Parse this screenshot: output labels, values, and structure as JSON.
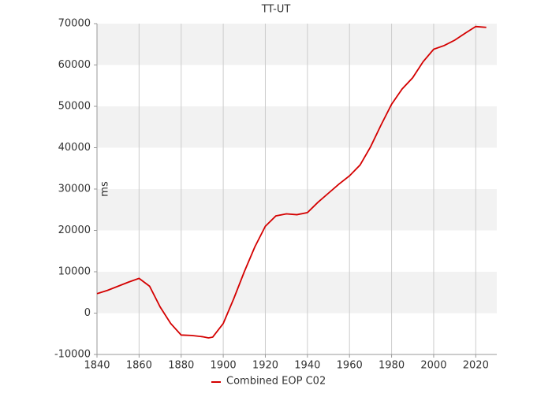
{
  "chart_data": {
    "type": "line",
    "title": "TT-UT",
    "y_label": "ms",
    "x": [
      1840,
      1845,
      1850,
      1855,
      1860,
      1865,
      1870,
      1875,
      1880,
      1885,
      1890,
      1893,
      1895,
      1900,
      1905,
      1910,
      1915,
      1920,
      1925,
      1930,
      1935,
      1940,
      1945,
      1950,
      1955,
      1960,
      1965,
      1970,
      1975,
      1980,
      1985,
      1990,
      1995,
      2000,
      2005,
      2010,
      2015,
      2020,
      2025
    ],
    "series": [
      {
        "name": "Combined EOP C02",
        "color": "#d40000",
        "values": [
          4700,
          5500,
          6500,
          7500,
          8400,
          6500,
          1500,
          -2500,
          -5300,
          -5400,
          -5700,
          -6000,
          -5800,
          -2500,
          3500,
          10000,
          16000,
          21000,
          23500,
          24000,
          23800,
          24300,
          26800,
          29000,
          31200,
          33200,
          35800,
          40200,
          45500,
          50500,
          54200,
          56900,
          60800,
          63800,
          64700,
          66000,
          67700,
          69300,
          69100
        ]
      }
    ],
    "xlim": [
      1840,
      2030
    ],
    "xticks": [
      1840,
      1860,
      1880,
      1900,
      1920,
      1940,
      1960,
      1980,
      2000,
      2020
    ],
    "ylim": [
      -10000,
      70000
    ],
    "yticks": [
      -10000,
      0,
      10000,
      20000,
      30000,
      40000,
      50000,
      60000,
      70000
    ],
    "grid": true,
    "legend": "bottom"
  }
}
